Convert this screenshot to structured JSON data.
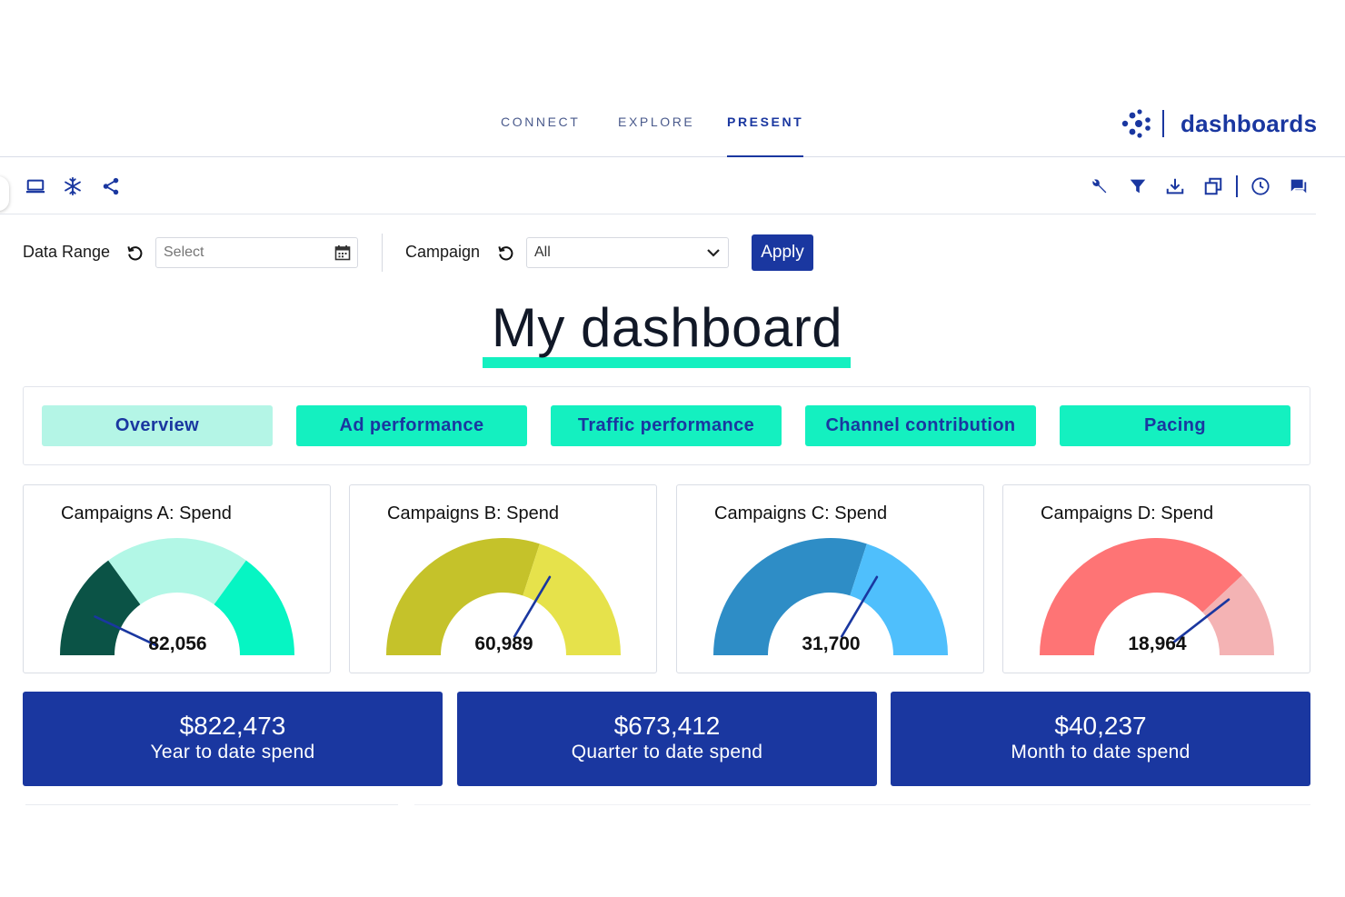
{
  "nav": {
    "tabs": [
      {
        "label": "CONNECT",
        "active": false
      },
      {
        "label": "EXPLORE",
        "active": false
      },
      {
        "label": "PRESENT",
        "active": true
      }
    ],
    "brand": "dashboards"
  },
  "toolbar": {
    "left_icons": [
      "monitor-icon",
      "snowflake-icon",
      "share-icon"
    ],
    "right_icons": [
      "wrench-icon",
      "filter-icon",
      "download-icon",
      "duplicate-icon",
      "clock-icon",
      "comment-icon"
    ]
  },
  "filters": {
    "date_range": {
      "label": "Data Range",
      "placeholder": "Select"
    },
    "campaign": {
      "label": "Campaign",
      "value": "All",
      "options": [
        "All"
      ]
    },
    "apply_label": "Apply"
  },
  "dashboard": {
    "title": "My dashboard",
    "tabs": [
      {
        "label": "Overview",
        "active": true
      },
      {
        "label": "Ad performance",
        "active": false
      },
      {
        "label": "Traffic performance",
        "active": false
      },
      {
        "label": "Channel contribution",
        "active": false
      },
      {
        "label": "Pacing",
        "active": false
      }
    ]
  },
  "gauges": [
    {
      "title": "Campaigns A: Spend",
      "value": "82,056",
      "needle_fraction": 0.14,
      "segments": [
        {
          "from": 0,
          "to": 0.3,
          "color": "#0b5346"
        },
        {
          "from": 0.3,
          "to": 0.7,
          "color": "#b2f7e6"
        },
        {
          "from": 0.7,
          "to": 1,
          "color": "#06f5c3"
        }
      ]
    },
    {
      "title": "Campaigns B: Spend",
      "value": "60,989",
      "needle_fraction": 0.67,
      "segments": [
        {
          "from": 0,
          "to": 0.6,
          "color": "#c5c22a"
        },
        {
          "from": 0.6,
          "to": 1,
          "color": "#e6e24b"
        }
      ]
    },
    {
      "title": "Campaigns C: Spend",
      "value": "31,700",
      "needle_fraction": 0.67,
      "segments": [
        {
          "from": 0,
          "to": 0.6,
          "color": "#2e8dc6"
        },
        {
          "from": 0.6,
          "to": 1,
          "color": "#4fbffc"
        }
      ]
    },
    {
      "title": "Campaigns D: Spend",
      "value": "18,964",
      "needle_fraction": 0.79,
      "segments": [
        {
          "from": 0,
          "to": 0.76,
          "color": "#fe7475"
        },
        {
          "from": 0.76,
          "to": 1,
          "color": "#f4b3b4"
        }
      ]
    }
  ],
  "kpis": [
    {
      "value": "$822,473",
      "label": "Year to date spend"
    },
    {
      "value": "$673,412",
      "label": "Quarter to date spend"
    },
    {
      "value": "$40,237",
      "label": "Month to date spend"
    }
  ],
  "colors": {
    "primary": "#1a37a0",
    "accent": "#14f0c0",
    "accent_light": "#b4f5e6"
  }
}
